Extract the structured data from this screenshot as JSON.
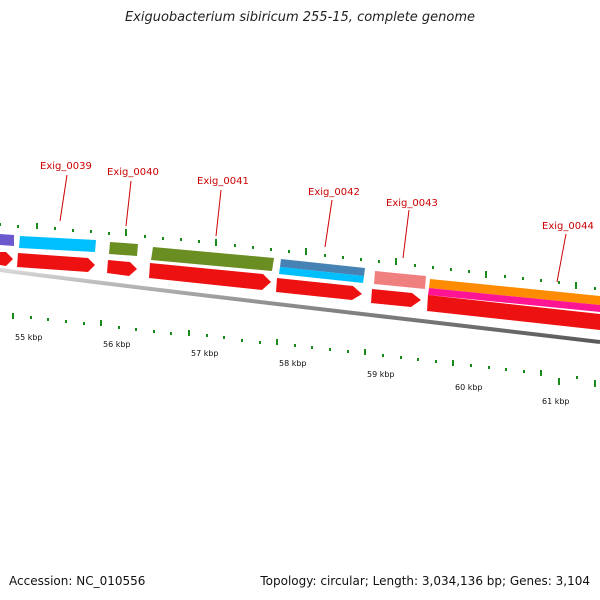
{
  "title": "Exiguobacterium sibiricum 255-15, complete genome",
  "footer": {
    "accession": "Accession: NC_010556",
    "topology": "Topology: circular; Length: 3,034,136 bp; Genes: 3,104"
  },
  "colors": {
    "label": "#c00000",
    "red_arrow": "#ee1111",
    "tick": "#1a8a1a",
    "backbone": "#8a8a8a"
  },
  "gene_labels": [
    "Exig_0039",
    "Exig_0040",
    "Exig_0041",
    "Exig_0042",
    "Exig_0043",
    "Exig_0044"
  ],
  "scale_labels": [
    "55 kbp",
    "56 kbp",
    "57 kbp",
    "58 kbp",
    "59 kbp",
    "60 kbp",
    "61 kbp"
  ]
}
